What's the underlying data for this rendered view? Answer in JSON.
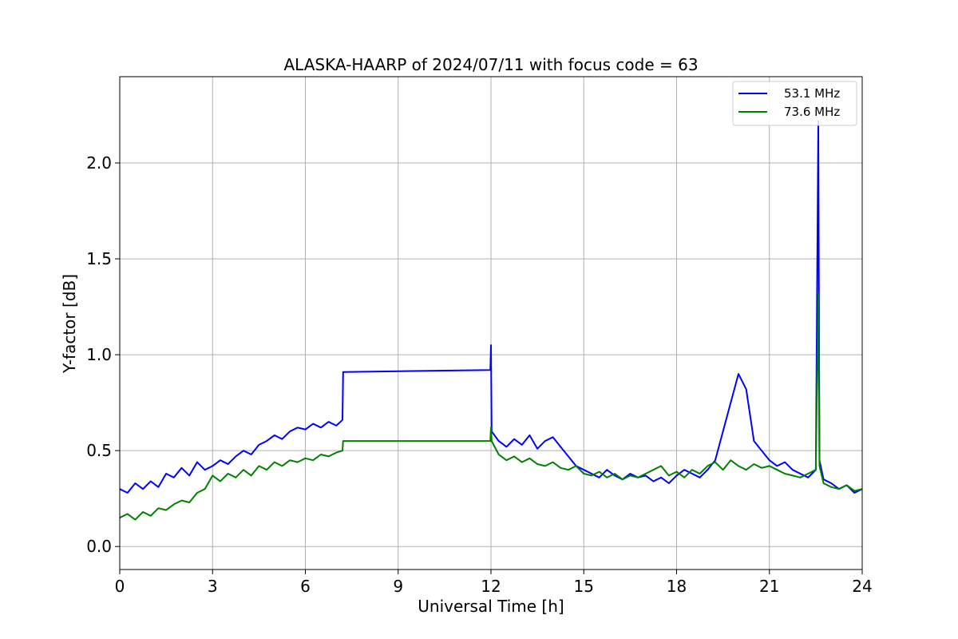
{
  "chart_data": {
    "type": "line",
    "title": "ALASKA-HAARP of 2024/07/11 with focus code = 63",
    "xlabel": "Universal Time [h]",
    "ylabel": "Y-factor [dB]",
    "xlim": [
      0,
      24
    ],
    "ylim": [
      -0.12,
      2.45
    ],
    "xticks": [
      0,
      3,
      6,
      9,
      12,
      15,
      18,
      21,
      24
    ],
    "xtick_labels": [
      "0",
      "3",
      "6",
      "9",
      "12",
      "15",
      "18",
      "21",
      "24"
    ],
    "yticks": [
      0.0,
      0.5,
      1.0,
      1.5,
      2.0
    ],
    "ytick_labels": [
      "0.0",
      "0.5",
      "1.0",
      "1.5",
      "2.0"
    ],
    "grid": true,
    "legend_position": "top-right",
    "series": [
      {
        "name": "53.1 MHz",
        "color": "#0000ff",
        "x": [
          0,
          0.25,
          0.5,
          0.75,
          1.0,
          1.25,
          1.5,
          1.75,
          2.0,
          2.25,
          2.5,
          2.75,
          3.0,
          3.25,
          3.5,
          3.75,
          4.0,
          4.25,
          4.5,
          4.75,
          5.0,
          5.25,
          5.5,
          5.75,
          6.0,
          6.25,
          6.5,
          6.75,
          7.0,
          7.2,
          7.22,
          11.98,
          12.0,
          12.02,
          12.25,
          12.5,
          12.75,
          13.0,
          13.25,
          13.5,
          13.75,
          14.0,
          14.25,
          14.5,
          14.75,
          15.0,
          15.25,
          15.5,
          15.75,
          16.0,
          16.25,
          16.5,
          16.75,
          17.0,
          17.25,
          17.5,
          17.75,
          18.0,
          18.25,
          18.5,
          18.75,
          19.0,
          19.25,
          19.5,
          19.75,
          20.0,
          20.25,
          20.5,
          20.75,
          21.0,
          21.25,
          21.5,
          21.75,
          22.0,
          22.25,
          22.5,
          22.58,
          22.62,
          22.75,
          23.0,
          23.25,
          23.5,
          23.75,
          24.0
        ],
        "y": [
          0.3,
          0.28,
          0.33,
          0.3,
          0.34,
          0.31,
          0.38,
          0.36,
          0.41,
          0.37,
          0.44,
          0.4,
          0.42,
          0.45,
          0.43,
          0.47,
          0.5,
          0.48,
          0.53,
          0.55,
          0.58,
          0.56,
          0.6,
          0.62,
          0.61,
          0.64,
          0.62,
          0.65,
          0.63,
          0.66,
          0.91,
          0.92,
          1.05,
          0.6,
          0.55,
          0.52,
          0.56,
          0.53,
          0.58,
          0.51,
          0.55,
          0.57,
          0.52,
          0.47,
          0.42,
          0.4,
          0.38,
          0.36,
          0.4,
          0.37,
          0.35,
          0.38,
          0.36,
          0.37,
          0.34,
          0.36,
          0.33,
          0.37,
          0.4,
          0.38,
          0.36,
          0.4,
          0.45,
          0.6,
          0.75,
          0.9,
          0.82,
          0.55,
          0.5,
          0.45,
          0.42,
          0.44,
          0.4,
          0.38,
          0.36,
          0.4,
          2.22,
          0.45,
          0.35,
          0.33,
          0.3,
          0.32,
          0.28,
          0.3
        ]
      },
      {
        "name": "73.6 MHz",
        "color": "#008000",
        "x": [
          0,
          0.25,
          0.5,
          0.75,
          1.0,
          1.25,
          1.5,
          1.75,
          2.0,
          2.25,
          2.5,
          2.75,
          3.0,
          3.25,
          3.5,
          3.75,
          4.0,
          4.25,
          4.5,
          4.75,
          5.0,
          5.25,
          5.5,
          5.75,
          6.0,
          6.25,
          6.5,
          6.75,
          7.0,
          7.2,
          7.22,
          11.98,
          12.0,
          12.02,
          12.25,
          12.5,
          12.75,
          13.0,
          13.25,
          13.5,
          13.75,
          14.0,
          14.25,
          14.5,
          14.75,
          15.0,
          15.25,
          15.5,
          15.75,
          16.0,
          16.25,
          16.5,
          16.75,
          17.0,
          17.25,
          17.5,
          17.75,
          18.0,
          18.25,
          18.5,
          18.75,
          19.0,
          19.25,
          19.5,
          19.75,
          20.0,
          20.25,
          20.5,
          20.75,
          21.0,
          21.25,
          21.5,
          21.75,
          22.0,
          22.25,
          22.5,
          22.58,
          22.62,
          22.75,
          23.0,
          23.25,
          23.5,
          23.75,
          24.0
        ],
        "y": [
          0.15,
          0.17,
          0.14,
          0.18,
          0.16,
          0.2,
          0.19,
          0.22,
          0.24,
          0.23,
          0.28,
          0.3,
          0.37,
          0.34,
          0.38,
          0.36,
          0.4,
          0.37,
          0.42,
          0.4,
          0.44,
          0.42,
          0.45,
          0.44,
          0.46,
          0.45,
          0.48,
          0.47,
          0.49,
          0.5,
          0.55,
          0.55,
          0.62,
          0.55,
          0.48,
          0.45,
          0.47,
          0.44,
          0.46,
          0.43,
          0.42,
          0.44,
          0.41,
          0.4,
          0.42,
          0.38,
          0.37,
          0.39,
          0.36,
          0.38,
          0.35,
          0.37,
          0.36,
          0.38,
          0.4,
          0.42,
          0.37,
          0.39,
          0.36,
          0.4,
          0.38,
          0.42,
          0.44,
          0.4,
          0.45,
          0.42,
          0.4,
          0.43,
          0.41,
          0.42,
          0.4,
          0.38,
          0.37,
          0.36,
          0.38,
          0.4,
          1.32,
          0.42,
          0.33,
          0.31,
          0.3,
          0.32,
          0.29,
          0.3
        ]
      }
    ]
  }
}
